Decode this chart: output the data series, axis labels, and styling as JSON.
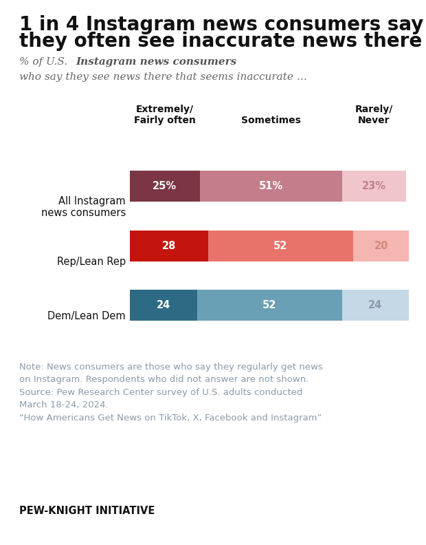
{
  "title_line1": "1 in 4 Instagram news consumers say",
  "title_line2": "they often see inaccurate news there",
  "col_headers": [
    "Extremely/\nFairly often",
    "Sometimes",
    "Rarely/\nNever"
  ],
  "categories": [
    "All Instagram\nnews consumers",
    "Rep/Lean Rep",
    "Dem/Lean Dem"
  ],
  "values": [
    [
      25,
      51,
      23
    ],
    [
      28,
      52,
      20
    ],
    [
      24,
      52,
      24
    ]
  ],
  "bar_labels": [
    [
      "25%",
      "51%",
      "23%"
    ],
    [
      "28",
      "52",
      "20"
    ],
    [
      "24",
      "52",
      "24"
    ]
  ],
  "colors_row0": [
    "#7b3544",
    "#c47d8a",
    "#f0c5cc"
  ],
  "colors_row1": [
    "#c4140e",
    "#e8736a",
    "#f5b5b0"
  ],
  "colors_row2": [
    "#2d6b85",
    "#6aa0b5",
    "#c5d8e5"
  ],
  "label_colors_row0": [
    "#ffffff",
    "#ffffff",
    "#c08088"
  ],
  "label_colors_row1": [
    "#ffffff",
    "#ffffff",
    "#d08880"
  ],
  "label_colors_row2": [
    "#ffffff",
    "#ffffff",
    "#8a9aaa"
  ],
  "note_text": "Note: News consumers are those who say they regularly get news\non Instagram. Respondents who did not answer are not shown.\nSource: Pew Research Center survey of U.S. adults conducted\nMarch 18-24, 2024.\n“How Americans Get News on TikTok, X, Facebook and Instagram”",
  "footer_text": "PEW-KNIGHT INITIATIVE",
  "note_color": "#8a9aaa",
  "background_color": "#ffffff",
  "separator_color": "#cccccc"
}
